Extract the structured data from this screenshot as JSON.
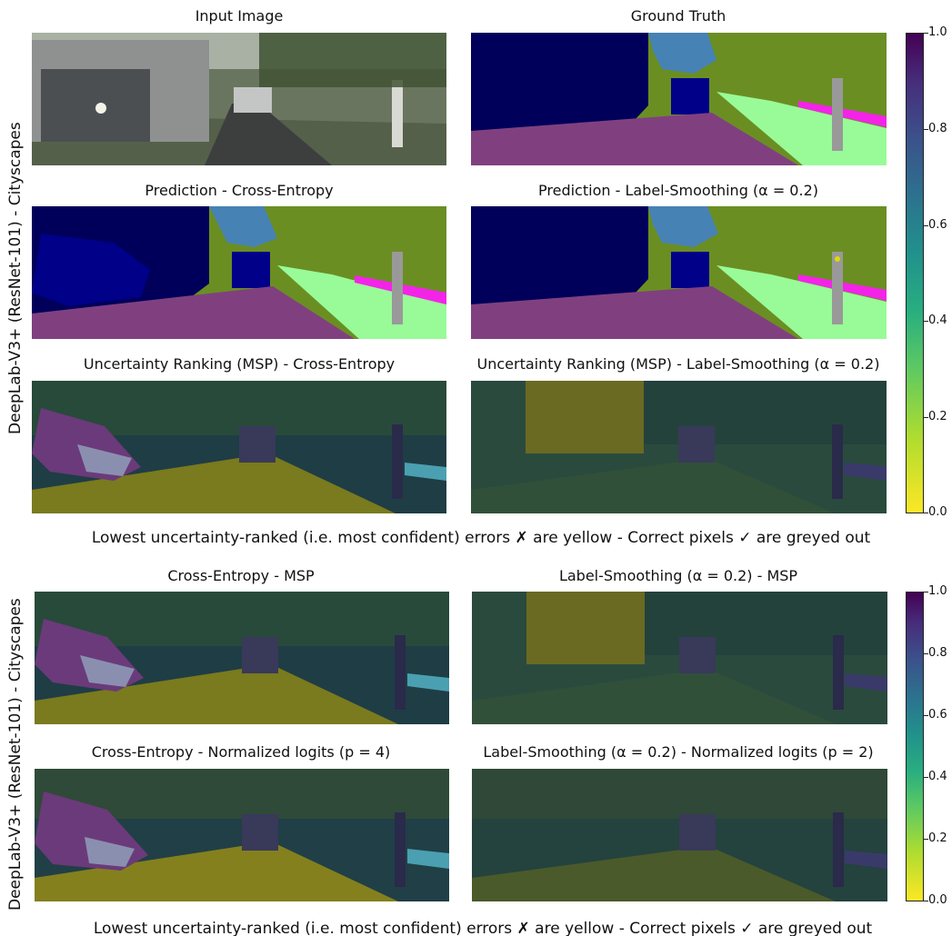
{
  "top_figure": {
    "ylabel": "DeepLab-V3+ (ResNet-101) - Cityscapes",
    "titles": {
      "input": "Input Image",
      "gt": "Ground Truth",
      "pred_ce": "Prediction - Cross-Entropy",
      "pred_ls": "Prediction - Label-Smoothing (α = 0.2)",
      "unc_ce": "Uncertainty Ranking (MSP) - Cross-Entropy",
      "unc_ls": "Uncertainty Ranking (MSP) - Label-Smoothing (α = 0.2)"
    },
    "caption": "Lowest uncertainty-ranked (i.e. most confident) errors ✗ are yellow - Correct pixels ✓ are greyed out",
    "colorbar_ticks": [
      "1.0",
      "0.8",
      "0.6",
      "0.4",
      "0.2",
      "0.0"
    ]
  },
  "bottom_figure": {
    "ylabel": "DeepLab-V3+ (ResNet-101) - Cityscapes",
    "titles": {
      "ce_msp": "Cross-Entropy - MSP",
      "ls_msp": "Label-Smoothing (α = 0.2) - MSP",
      "ce_norm": "Cross-Entropy - Normalized logits (p = 4)",
      "ls_norm": "Label-Smoothing (α = 0.2) - Normalized logits (p = 2)"
    },
    "caption": "Lowest uncertainty-ranked (i.e. most confident) errors ✗ are yellow - Correct pixels ✓ are greyed out",
    "colorbar_ticks": [
      "1.0",
      "0.8",
      "0.6",
      "0.4",
      "0.2",
      "0.0"
    ]
  },
  "colormap": "viridis_r",
  "seg_colors": {
    "vehicle": "#00005a",
    "car": "#000088",
    "vegetation": "#6b8e23",
    "sky": "#4682b4",
    "road": "#804080",
    "terrain": "#98fb98",
    "sidewalk": "#f423e8",
    "pole": "#999999",
    "sign": "#dcdc00"
  }
}
